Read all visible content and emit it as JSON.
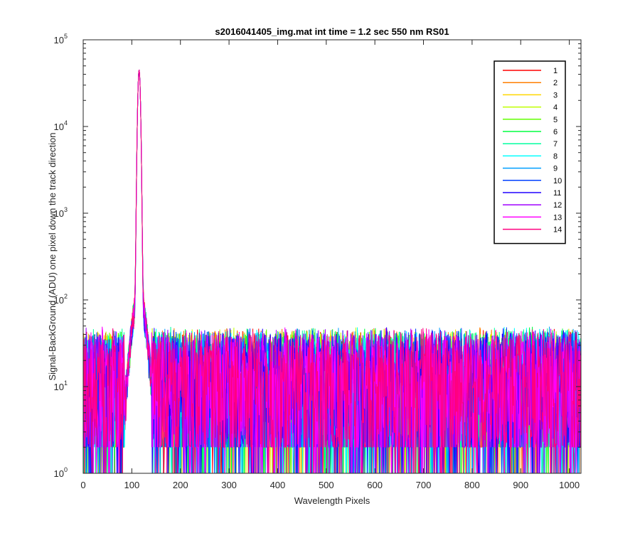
{
  "chart_data": {
    "type": "line",
    "title": "s2016041405_img.mat int time = 1.2 sec  550 nm RS01",
    "xlabel": "Wavelength Pixels",
    "ylabel": "Signal-BackGround (ADU) one pixel down the track direction",
    "xlim": [
      0,
      1024
    ],
    "ylim": [
      1,
      100000
    ],
    "yscale": "log",
    "grid": false,
    "legend_position": "top-right",
    "x_ticks": [
      "0",
      "100",
      "200",
      "300",
      "400",
      "500",
      "600",
      "700",
      "800",
      "900",
      "1000"
    ],
    "y_ticks": [
      {
        "value": 1,
        "base": "10",
        "exp": "0"
      },
      {
        "value": 10,
        "base": "10",
        "exp": "1"
      },
      {
        "value": 100,
        "base": "10",
        "exp": "2"
      },
      {
        "value": 1000,
        "base": "10",
        "exp": "3"
      },
      {
        "value": 10000,
        "base": "10",
        "exp": "4"
      },
      {
        "value": 100000,
        "base": "10",
        "exp": "5"
      }
    ],
    "peak": {
      "x": 115,
      "y": 45000
    },
    "noise_floor_approx": [
      2,
      45
    ],
    "series": [
      {
        "name": "1",
        "color": "#ff0000"
      },
      {
        "name": "2",
        "color": "#ff7f00"
      },
      {
        "name": "3",
        "color": "#ffd700"
      },
      {
        "name": "4",
        "color": "#bfff00"
      },
      {
        "name": "5",
        "color": "#60ff00"
      },
      {
        "name": "6",
        "color": "#00ff40"
      },
      {
        "name": "7",
        "color": "#00ff9f"
      },
      {
        "name": "8",
        "color": "#00ffff"
      },
      {
        "name": "9",
        "color": "#009fff"
      },
      {
        "name": "10",
        "color": "#0040ff"
      },
      {
        "name": "11",
        "color": "#2000ff"
      },
      {
        "name": "12",
        "color": "#9f00ff"
      },
      {
        "name": "13",
        "color": "#ff00ff"
      },
      {
        "name": "14",
        "color": "#ff0080"
      }
    ]
  }
}
